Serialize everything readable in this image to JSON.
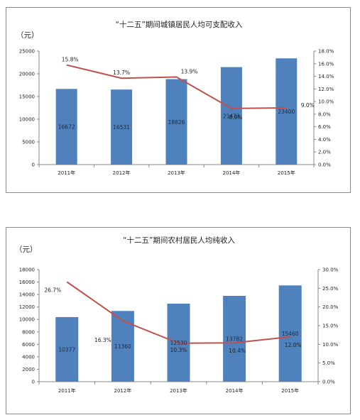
{
  "chart_data": [
    {
      "type": "bar",
      "title": "“十二五”期间城镇居民人均可支配收入",
      "ylabel": "（元）",
      "categories": [
        "2011年",
        "2012年",
        "2013年",
        "2014年",
        "2015年"
      ],
      "series": [
        {
          "type": "bar",
          "axis": "left",
          "values": [
            16672,
            16531,
            18826,
            21473,
            23400
          ]
        },
        {
          "type": "line",
          "axis": "right",
          "values": [
            15.8,
            13.7,
            13.9,
            8.9,
            9.0
          ]
        }
      ],
      "bar_labels": [
        "16672",
        "16531",
        "18826",
        "21473",
        "23400"
      ],
      "line_labels": [
        "15.8%",
        "13.7%",
        "13.9%",
        "8.9%",
        "9.0%"
      ],
      "ylim": [
        0,
        25000
      ],
      "y_ticks": [
        "0",
        "5000",
        "10000",
        "15000",
        "20000",
        "25000"
      ],
      "y2lim": [
        0,
        18
      ],
      "y2_ticks": [
        "0.0%",
        "2.0%",
        "4.0%",
        "6.0%",
        "8.0%",
        "10.0%",
        "12.0%",
        "14.0%",
        "16.0%",
        "18.0%"
      ],
      "grid": false,
      "colors": {
        "bar": "#4f81bd",
        "line": "#c0504d"
      }
    },
    {
      "type": "bar",
      "title": "“十二五”期间农村居民人均纯收入",
      "ylabel": "（元）",
      "categories": [
        "2011年",
        "2012年",
        "2013年",
        "2014年",
        "2015年"
      ],
      "series": [
        {
          "type": "bar",
          "axis": "left",
          "values": [
            10377,
            11360,
            12530,
            13782,
            15460
          ]
        },
        {
          "type": "line",
          "axis": "right",
          "values": [
            26.7,
            16.3,
            10.3,
            10.4,
            12.0
          ]
        }
      ],
      "bar_labels": [
        "10377",
        "11360",
        "12530",
        "13782",
        "15460"
      ],
      "line_labels": [
        "26.7%",
        "16.3%",
        "10.3%",
        "10.4%",
        "12.0%"
      ],
      "ylim": [
        0,
        18000
      ],
      "y_ticks": [
        "0",
        "2000",
        "4000",
        "6000",
        "8000",
        "10000",
        "12000",
        "14000",
        "16000",
        "18000"
      ],
      "y2lim": [
        0,
        30
      ],
      "y2_ticks": [
        "0.0%",
        "5.0%",
        "10.0%",
        "15.0%",
        "20.0%",
        "25.0%",
        "30.0%"
      ],
      "grid": false,
      "colors": {
        "bar": "#4f81bd",
        "line": "#c0504d"
      }
    }
  ]
}
